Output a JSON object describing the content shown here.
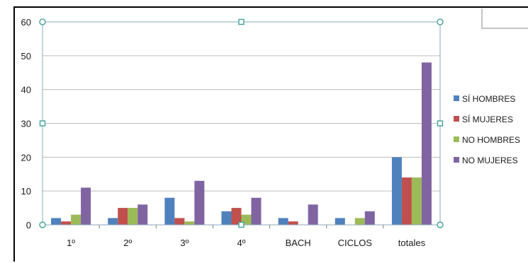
{
  "chart_data": {
    "type": "bar",
    "categories": [
      "1º",
      "2º",
      "3º",
      "4º",
      "BACH",
      "CICLOS",
      "totales"
    ],
    "series": [
      {
        "name": "SÍ HOMBRES",
        "color": "#4f81bd",
        "values": [
          2,
          2,
          8,
          4,
          2,
          2,
          20
        ]
      },
      {
        "name": "SÍ MUJERES",
        "color": "#c0504d",
        "values": [
          1,
          5,
          2,
          5,
          1,
          0,
          14
        ]
      },
      {
        "name": "NO HOMBRES",
        "color": "#9bbb59",
        "values": [
          3,
          5,
          1,
          3,
          0,
          2,
          14
        ]
      },
      {
        "name": "NO MUJERES",
        "color": "#8064a2",
        "values": [
          11,
          6,
          13,
          8,
          6,
          4,
          48
        ]
      }
    ],
    "yticks": [
      0,
      10,
      20,
      30,
      40,
      50,
      60
    ],
    "ylim": [
      0,
      60
    ],
    "grid": true,
    "legend_position": "right",
    "title": "",
    "xlabel": "",
    "ylabel": ""
  }
}
